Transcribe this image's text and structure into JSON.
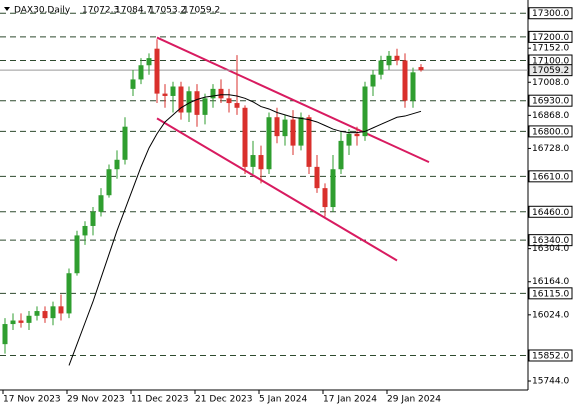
{
  "chart_data": {
    "type": "candlestick",
    "symbol": "DAX30,Daily",
    "categories": [
      "17 Nov 2023",
      null,
      null,
      null,
      null,
      null,
      null,
      null,
      "29 Nov 2023",
      null,
      null,
      null,
      null,
      null,
      null,
      null,
      "11 Dec 2023",
      null,
      null,
      null,
      null,
      null,
      null,
      null,
      "21 Dec 2023",
      null,
      null,
      null,
      null,
      null,
      null,
      null,
      "5 Jan 2024",
      null,
      null,
      null,
      null,
      null,
      null,
      null,
      "17 Jan 2024",
      null,
      null,
      null,
      null,
      null,
      null,
      null,
      "29 Jan 2024",
      null,
      null,
      null,
      null
    ],
    "open": [
      15900,
      15985,
      16000,
      15990,
      16020,
      16040,
      16010,
      16060,
      16030,
      16200,
      16360,
      16400,
      16460,
      16530,
      16640,
      16680,
      16980,
      17020,
      17080,
      17150,
      16960,
      16950,
      16990,
      16880,
      16970,
      16870,
      16940,
      16980,
      16940,
      16920,
      16900,
      16650,
      16700,
      16640,
      16860,
      16780,
      16850,
      16740,
      16860,
      16650,
      16560,
      16480,
      16640,
      16740,
      16790,
      16780,
      16990,
      17040,
      17080,
      17120,
      17100,
      16930,
      17072.3
    ],
    "high": [
      16010,
      16030,
      16030,
      16040,
      16060,
      16060,
      16080,
      16110,
      16220,
      16380,
      16420,
      16480,
      16560,
      16660,
      16720,
      16860,
      17060,
      17110,
      17130,
      17190,
      17000,
      17010,
      17010,
      16990,
      17000,
      16960,
      17000,
      17020,
      16980,
      17123,
      16910,
      16760,
      16740,
      16880,
      16900,
      16870,
      16890,
      16880,
      16870,
      16700,
      16580,
      16700,
      16800,
      16810,
      16820,
      17010,
      17060,
      17120,
      17140,
      17150,
      17130,
      17070,
      17084.7
    ],
    "low": [
      15860,
      15960,
      15970,
      15960,
      16000,
      15990,
      15980,
      16000,
      16010,
      16190,
      16320,
      16360,
      16440,
      16520,
      16600,
      16660,
      16950,
      17000,
      17040,
      16920,
      16900,
      16880,
      16850,
      16840,
      16820,
      16830,
      16900,
      16920,
      16880,
      16870,
      16620,
      16620,
      16580,
      16620,
      16750,
      16740,
      16700,
      16720,
      16620,
      16540,
      16440,
      16460,
      16620,
      16700,
      16740,
      16760,
      16950,
      17020,
      17060,
      17080,
      16900,
      16900,
      17053.2
    ],
    "close": [
      15985,
      16000,
      15990,
      16020,
      16040,
      16010,
      16060,
      16030,
      16200,
      16360,
      16400,
      16460,
      16530,
      16640,
      16680,
      16820,
      17020,
      17080,
      17110,
      16960,
      16950,
      16990,
      16880,
      16970,
      16870,
      16940,
      16980,
      16940,
      16920,
      16900,
      16650,
      16700,
      16640,
      16860,
      16780,
      16850,
      16740,
      16860,
      16650,
      16560,
      16480,
      16640,
      16760,
      16790,
      16780,
      16990,
      17040,
      17100,
      17120,
      17100,
      16930,
      17050,
      17059.2
    ],
    "bull_color": "#2f9e2f",
    "bear_color": "#d9302c",
    "ma": {
      "color": "#000000",
      "values": [
        null,
        null,
        null,
        null,
        null,
        null,
        null,
        null,
        15810,
        15900,
        15990,
        16080,
        16180,
        16280,
        16380,
        16470,
        16560,
        16650,
        16730,
        16790,
        16840,
        16870,
        16900,
        16920,
        16935,
        16945,
        16950,
        16955,
        16955,
        16950,
        16940,
        16925,
        16905,
        16895,
        16880,
        16870,
        16860,
        16855,
        16850,
        16840,
        16825,
        16810,
        16800,
        16795,
        16795,
        16800,
        16815,
        16830,
        16845,
        16860,
        16865,
        16875,
        16885
      ]
    },
    "trendlines": [
      {
        "color": "#d81b60",
        "x": [
          19,
          53
        ],
        "y": [
          17197,
          16670
        ]
      },
      {
        "color": "#d81b60",
        "x": [
          19,
          49
        ],
        "y": [
          16855,
          16254
        ]
      }
    ],
    "ylim": [
      15706,
      17356
    ],
    "yticks": [
      {
        "value": 17152,
        "label": "17152.0"
      },
      {
        "value": 17008,
        "label": "17008.0"
      },
      {
        "value": 16868,
        "label": "16868.0"
      },
      {
        "value": 16728,
        "label": "16728.0"
      },
      {
        "value": 16304,
        "label": "16304.0"
      },
      {
        "value": 16164,
        "label": "16164.0"
      },
      {
        "value": 16024,
        "label": "16024.0"
      },
      {
        "value": 15744,
        "label": "15744.0"
      }
    ],
    "levels": [
      {
        "value": 17300,
        "label": "17300.0"
      },
      {
        "value": 17200,
        "label": "17200.0"
      },
      {
        "value": 17100,
        "label": "17100.0"
      },
      {
        "value": 16930,
        "label": "16930.0"
      },
      {
        "value": 16800,
        "label": "16800.0"
      },
      {
        "value": 16610,
        "label": "16610.0"
      },
      {
        "value": 16460,
        "label": "16460.0"
      },
      {
        "value": 16340,
        "label": "16340.0"
      },
      {
        "value": 16115,
        "label": "16115.0"
      },
      {
        "value": 15852,
        "label": "15852.0"
      }
    ],
    "level_color": "#2e4a2e",
    "price_line": 17059.2,
    "price_line_color": "#9a9a9a"
  }
}
